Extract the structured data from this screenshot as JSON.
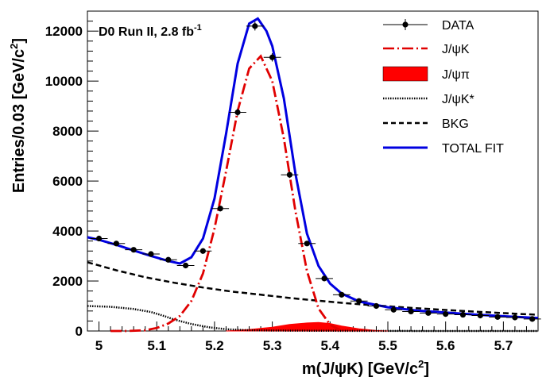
{
  "chart_data": {
    "type": "scatter",
    "title": "D0 Run II, 2.8 fb",
    "title_superscript": "-1",
    "xlabel": "m(J/ψK) [GeV/c",
    "xlabel_superscript": "2",
    "xlabel_suffix": "]",
    "ylabel": "Entries/0.03 [GeV/c",
    "ylabel_superscript": "2",
    "ylabel_suffix": "]",
    "xlim": [
      4.98,
      5.76
    ],
    "ylim": [
      0,
      12800
    ],
    "xticks": [
      5.0,
      5.1,
      5.2,
      5.3,
      5.4,
      5.5,
      5.6,
      5.7
    ],
    "xtick_labels": [
      "5",
      "5.1",
      "5.2",
      "5.3",
      "5.4",
      "5.5",
      "5.6",
      "5.7"
    ],
    "yticks": [
      0,
      2000,
      4000,
      6000,
      8000,
      10000,
      12000
    ],
    "ytick_labels": [
      "0",
      "2000",
      "4000",
      "6000",
      "8000",
      "10000",
      "12000"
    ],
    "legend_position": "top-right",
    "legend": [
      {
        "label": "DATA",
        "style": "data"
      },
      {
        "label": "J/ψK",
        "style": "dashdot",
        "color": "#e00000"
      },
      {
        "label": "J/ψπ",
        "style": "fill",
        "color": "#ff0000"
      },
      {
        "label": "J/ψK*",
        "style": "dotted",
        "color": "#000000"
      },
      {
        "label": "BKG",
        "style": "dashed",
        "color": "#000000"
      },
      {
        "label": "TOTAL FIT",
        "style": "solid",
        "color": "#0000e0"
      }
    ],
    "series": [
      {
        "name": "DATA",
        "x": [
          5.0,
          5.03,
          5.06,
          5.09,
          5.12,
          5.15,
          5.18,
          5.21,
          5.24,
          5.27,
          5.3,
          5.33,
          5.36,
          5.39,
          5.42,
          5.45,
          5.48,
          5.51,
          5.54,
          5.57,
          5.6,
          5.63,
          5.66,
          5.69,
          5.72,
          5.75
        ],
        "y": [
          3700,
          3500,
          3250,
          3080,
          2850,
          2620,
          3200,
          4900,
          8750,
          12200,
          10950,
          6250,
          3500,
          2100,
          1450,
          1200,
          1000,
          850,
          780,
          720,
          680,
          650,
          620,
          560,
          540,
          480
        ]
      },
      {
        "name": "J/ψK",
        "x": [
          5.02,
          5.05,
          5.08,
          5.1,
          5.12,
          5.14,
          5.16,
          5.18,
          5.2,
          5.22,
          5.24,
          5.26,
          5.28,
          5.3,
          5.32,
          5.34,
          5.36,
          5.38,
          5.4,
          5.42
        ],
        "y": [
          0,
          0,
          30,
          120,
          300,
          600,
          1200,
          2300,
          4100,
          6400,
          8800,
          10500,
          11000,
          10000,
          7700,
          4800,
          2400,
          900,
          250,
          0
        ]
      },
      {
        "name": "J/ψπ",
        "x": [
          5.22,
          5.26,
          5.3,
          5.33,
          5.36,
          5.38,
          5.4,
          5.42,
          5.45,
          5.48,
          5.5
        ],
        "y": [
          0,
          60,
          150,
          260,
          320,
          340,
          300,
          200,
          90,
          20,
          0
        ]
      },
      {
        "name": "J/ψK*",
        "x": [
          4.98,
          5.02,
          5.06,
          5.09,
          5.11,
          5.13,
          5.16,
          5.19,
          5.22,
          5.26,
          5.3,
          5.4,
          5.5,
          5.6,
          5.76
        ],
        "y": [
          1000,
          970,
          880,
          760,
          620,
          460,
          280,
          150,
          70,
          30,
          15,
          5,
          2,
          0,
          0
        ]
      },
      {
        "name": "BKG",
        "x": [
          4.98,
          5.03,
          5.08,
          5.13,
          5.18,
          5.23,
          5.28,
          5.33,
          5.38,
          5.43,
          5.48,
          5.53,
          5.58,
          5.63,
          5.68,
          5.73,
          5.76
        ],
        "y": [
          2750,
          2430,
          2150,
          1930,
          1740,
          1580,
          1450,
          1320,
          1210,
          1110,
          1020,
          940,
          870,
          800,
          740,
          680,
          650
        ]
      },
      {
        "name": "TOTAL FIT",
        "x": [
          4.98,
          5.0,
          5.03,
          5.06,
          5.09,
          5.12,
          5.14,
          5.16,
          5.18,
          5.2,
          5.22,
          5.24,
          5.26,
          5.275,
          5.29,
          5.3,
          5.32,
          5.34,
          5.36,
          5.38,
          5.4,
          5.42,
          5.45,
          5.5,
          5.55,
          5.6,
          5.65,
          5.7,
          5.76
        ],
        "y": [
          3750,
          3650,
          3450,
          3220,
          3000,
          2800,
          2700,
          2950,
          3700,
          5300,
          7900,
          10700,
          12300,
          12500,
          12000,
          11400,
          9300,
          6300,
          3900,
          2600,
          1900,
          1500,
          1180,
          950,
          820,
          740,
          660,
          590,
          520
        ]
      }
    ]
  }
}
